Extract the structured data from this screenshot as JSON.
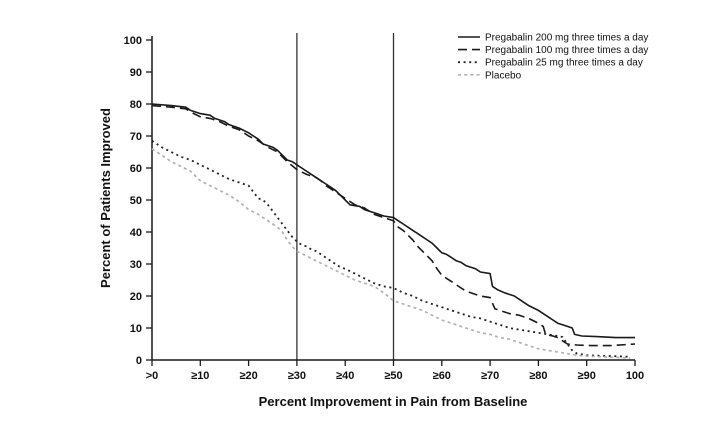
{
  "figure": {
    "background": "#ffffff",
    "axis_color": "#1a1a1a",
    "text_color": "#111111"
  },
  "chart_data": {
    "type": "line",
    "title": "",
    "xlabel": "Percent Improvement in Pain from Baseline",
    "ylabel": "Percent of Patients Improved",
    "xlim": [
      0,
      100
    ],
    "ylim": [
      0,
      100
    ],
    "grid": false,
    "legend_position": "top-right",
    "x_tick_values": [
      0,
      10,
      20,
      30,
      40,
      50,
      60,
      70,
      80,
      90,
      100
    ],
    "x_tick_labels": [
      ">0",
      "≥10",
      "≥20",
      "≥30",
      "≥40",
      "≥50",
      "≥60",
      "≥70",
      "≥80",
      "≥90",
      "100"
    ],
    "y_tick_values": [
      0,
      10,
      20,
      30,
      40,
      50,
      60,
      70,
      80,
      90,
      100
    ],
    "reference_lines_x": [
      30,
      50
    ],
    "series": [
      {
        "name": "Pregabalin 200 mg three times a day",
        "style": "solid",
        "color": "#1a1a1a",
        "width": 1.6,
        "dash": "",
        "points": [
          [
            0,
            80
          ],
          [
            4,
            79.5
          ],
          [
            7,
            79
          ],
          [
            8,
            78
          ],
          [
            10,
            77
          ],
          [
            12,
            76.5
          ],
          [
            13,
            75.5
          ],
          [
            15,
            74.5
          ],
          [
            16,
            73.5
          ],
          [
            18,
            72.5
          ],
          [
            20,
            71
          ],
          [
            21,
            70
          ],
          [
            22,
            69
          ],
          [
            23,
            67.5
          ],
          [
            25,
            66.5
          ],
          [
            26,
            65.5
          ],
          [
            27,
            64
          ],
          [
            28,
            62.5
          ],
          [
            29,
            62
          ],
          [
            30,
            61
          ],
          [
            31,
            60
          ],
          [
            33,
            58
          ],
          [
            34,
            57
          ],
          [
            35,
            56
          ],
          [
            36,
            55
          ],
          [
            37,
            54
          ],
          [
            38,
            53
          ],
          [
            39,
            51.5
          ],
          [
            40,
            50
          ],
          [
            41,
            48.5
          ],
          [
            43,
            48
          ],
          [
            44,
            47
          ],
          [
            45,
            46.5
          ],
          [
            46,
            46
          ],
          [
            47,
            45.5
          ],
          [
            48,
            45
          ],
          [
            50,
            44.5
          ],
          [
            51,
            43.5
          ],
          [
            52,
            42.5
          ],
          [
            53,
            41.5
          ],
          [
            54,
            40.5
          ],
          [
            55,
            39.5
          ],
          [
            56,
            38.5
          ],
          [
            57,
            37.5
          ],
          [
            58,
            36.5
          ],
          [
            59,
            35
          ],
          [
            60,
            33.5
          ],
          [
            61,
            33
          ],
          [
            62,
            32
          ],
          [
            63,
            31
          ],
          [
            64,
            30.5
          ],
          [
            65,
            29.5
          ],
          [
            66,
            29
          ],
          [
            67,
            28.5
          ],
          [
            68,
            27.5
          ],
          [
            70,
            27
          ],
          [
            70.5,
            23
          ],
          [
            71.5,
            22
          ],
          [
            73,
            21
          ],
          [
            75,
            20
          ],
          [
            76,
            19
          ],
          [
            77,
            18
          ],
          [
            78,
            17
          ],
          [
            80,
            15.5
          ],
          [
            81,
            14.5
          ],
          [
            82,
            13.5
          ],
          [
            83,
            12.5
          ],
          [
            84,
            11.5
          ],
          [
            85,
            11
          ],
          [
            86,
            10.5
          ],
          [
            87,
            10
          ],
          [
            87.5,
            8
          ],
          [
            89,
            7.5
          ],
          [
            92,
            7.3
          ],
          [
            96,
            7
          ],
          [
            100,
            7
          ]
        ]
      },
      {
        "name": "Pregabalin 100 mg three times a day",
        "style": "dashed",
        "color": "#1a1a1a",
        "width": 1.6,
        "dash": "9,5",
        "points": [
          [
            0,
            79.5
          ],
          [
            4,
            79
          ],
          [
            7,
            78.5
          ],
          [
            8,
            77.5
          ],
          [
            10,
            76
          ],
          [
            12,
            75.5
          ],
          [
            14,
            74.5
          ],
          [
            16,
            73
          ],
          [
            18,
            72
          ],
          [
            20,
            70
          ],
          [
            22,
            68.5
          ],
          [
            24,
            66.5
          ],
          [
            26,
            65
          ],
          [
            28,
            62
          ],
          [
            30,
            59.5
          ],
          [
            32,
            58
          ],
          [
            34,
            57
          ],
          [
            35,
            56
          ],
          [
            36,
            54.5
          ],
          [
            38,
            52.5
          ],
          [
            40,
            50.5
          ],
          [
            42,
            48.5
          ],
          [
            44,
            47.5
          ],
          [
            46,
            45.5
          ],
          [
            48,
            44.5
          ],
          [
            50,
            43.5
          ],
          [
            51,
            41.5
          ],
          [
            52,
            40.5
          ],
          [
            53,
            39
          ],
          [
            54,
            37.5
          ],
          [
            55,
            35.5
          ],
          [
            56,
            34
          ],
          [
            57,
            32.5
          ],
          [
            58,
            31
          ],
          [
            59,
            28.5
          ],
          [
            60,
            26.5
          ],
          [
            61,
            25.5
          ],
          [
            62,
            24.5
          ],
          [
            63,
            23.5
          ],
          [
            64,
            22.5
          ],
          [
            65,
            21.5
          ],
          [
            66,
            21
          ],
          [
            68,
            20
          ],
          [
            70,
            19.5
          ],
          [
            71,
            16
          ],
          [
            72,
            15.5
          ],
          [
            74,
            14.5
          ],
          [
            76,
            14
          ],
          [
            78,
            13
          ],
          [
            80,
            11.5
          ],
          [
            81,
            10.5
          ],
          [
            81.5,
            8
          ],
          [
            83,
            7.5
          ],
          [
            84,
            7
          ],
          [
            85,
            6
          ],
          [
            86,
            5
          ],
          [
            88,
            4.7
          ],
          [
            91,
            4.5
          ],
          [
            95,
            4.5
          ],
          [
            100,
            5
          ]
        ]
      },
      {
        "name": "Pregabalin 25 mg three times a day",
        "style": "dotted",
        "color": "#222222",
        "width": 1.8,
        "dash": "2,3.6",
        "points": [
          [
            0,
            68.5
          ],
          [
            2,
            66.5
          ],
          [
            4,
            65
          ],
          [
            6,
            63.5
          ],
          [
            8,
            62.5
          ],
          [
            10,
            61
          ],
          [
            12,
            59.5
          ],
          [
            14,
            58
          ],
          [
            16,
            56.5
          ],
          [
            18,
            55.5
          ],
          [
            20,
            54.5
          ],
          [
            21,
            52.5
          ],
          [
            22,
            50.5
          ],
          [
            23,
            50
          ],
          [
            24,
            48.5
          ],
          [
            25,
            46.5
          ],
          [
            26,
            44.5
          ],
          [
            27,
            42.5
          ],
          [
            28,
            40.5
          ],
          [
            29,
            38.5
          ],
          [
            30,
            37
          ],
          [
            31,
            36
          ],
          [
            32,
            35.5
          ],
          [
            33,
            34.5
          ],
          [
            34,
            34
          ],
          [
            35,
            33
          ],
          [
            36,
            32
          ],
          [
            37,
            31
          ],
          [
            38,
            30
          ],
          [
            39,
            29
          ],
          [
            40,
            28.5
          ],
          [
            42,
            27
          ],
          [
            44,
            25.5
          ],
          [
            46,
            24
          ],
          [
            48,
            23
          ],
          [
            50,
            22.5
          ],
          [
            52,
            21
          ],
          [
            54,
            20
          ],
          [
            56,
            18.5
          ],
          [
            58,
            17.5
          ],
          [
            60,
            16.5
          ],
          [
            62,
            15.5
          ],
          [
            64,
            14.5
          ],
          [
            66,
            13.5
          ],
          [
            68,
            13
          ],
          [
            70,
            12
          ],
          [
            72,
            11
          ],
          [
            74,
            10
          ],
          [
            76,
            9.5
          ],
          [
            78,
            9
          ],
          [
            80,
            8.5
          ],
          [
            82,
            8
          ],
          [
            84,
            7.5
          ],
          [
            85,
            7.2
          ],
          [
            86,
            5
          ],
          [
            87,
            3
          ],
          [
            88,
            2
          ],
          [
            90,
            1.5
          ],
          [
            93,
            1.3
          ],
          [
            96,
            1.2
          ],
          [
            99,
            1
          ]
        ]
      },
      {
        "name": "Placebo",
        "style": "dotted-light",
        "color": "#b2b2b2",
        "width": 1.7,
        "dash": "3,3.2",
        "points": [
          [
            0,
            66
          ],
          [
            2,
            64
          ],
          [
            4,
            62
          ],
          [
            6,
            60.5
          ],
          [
            8,
            59
          ],
          [
            10,
            56
          ],
          [
            12,
            54.5
          ],
          [
            14,
            53
          ],
          [
            16,
            51.5
          ],
          [
            18,
            49.5
          ],
          [
            20,
            47
          ],
          [
            22,
            45.5
          ],
          [
            24,
            43.5
          ],
          [
            26,
            41.5
          ],
          [
            27,
            40
          ],
          [
            28,
            37.5
          ],
          [
            29,
            35.5
          ],
          [
            30,
            34
          ],
          [
            32,
            32.5
          ],
          [
            34,
            31
          ],
          [
            36,
            29.5
          ],
          [
            38,
            28
          ],
          [
            40,
            26.5
          ],
          [
            42,
            25
          ],
          [
            44,
            24
          ],
          [
            46,
            23
          ],
          [
            48,
            21
          ],
          [
            50,
            18.5
          ],
          [
            52,
            17.5
          ],
          [
            54,
            16.5
          ],
          [
            56,
            15.5
          ],
          [
            58,
            14
          ],
          [
            60,
            12.5
          ],
          [
            62,
            11.5
          ],
          [
            64,
            10.5
          ],
          [
            66,
            9.5
          ],
          [
            68,
            8.5
          ],
          [
            70,
            8
          ],
          [
            72,
            7
          ],
          [
            74,
            6.5
          ],
          [
            76,
            5.5
          ],
          [
            78,
            4.5
          ],
          [
            80,
            3.5
          ],
          [
            82,
            3
          ],
          [
            84,
            2.5
          ],
          [
            86,
            2
          ],
          [
            88,
            1.5
          ],
          [
            90,
            1.2
          ],
          [
            93,
            1
          ],
          [
            96,
            0.8
          ],
          [
            99,
            0.6
          ]
        ]
      }
    ]
  }
}
